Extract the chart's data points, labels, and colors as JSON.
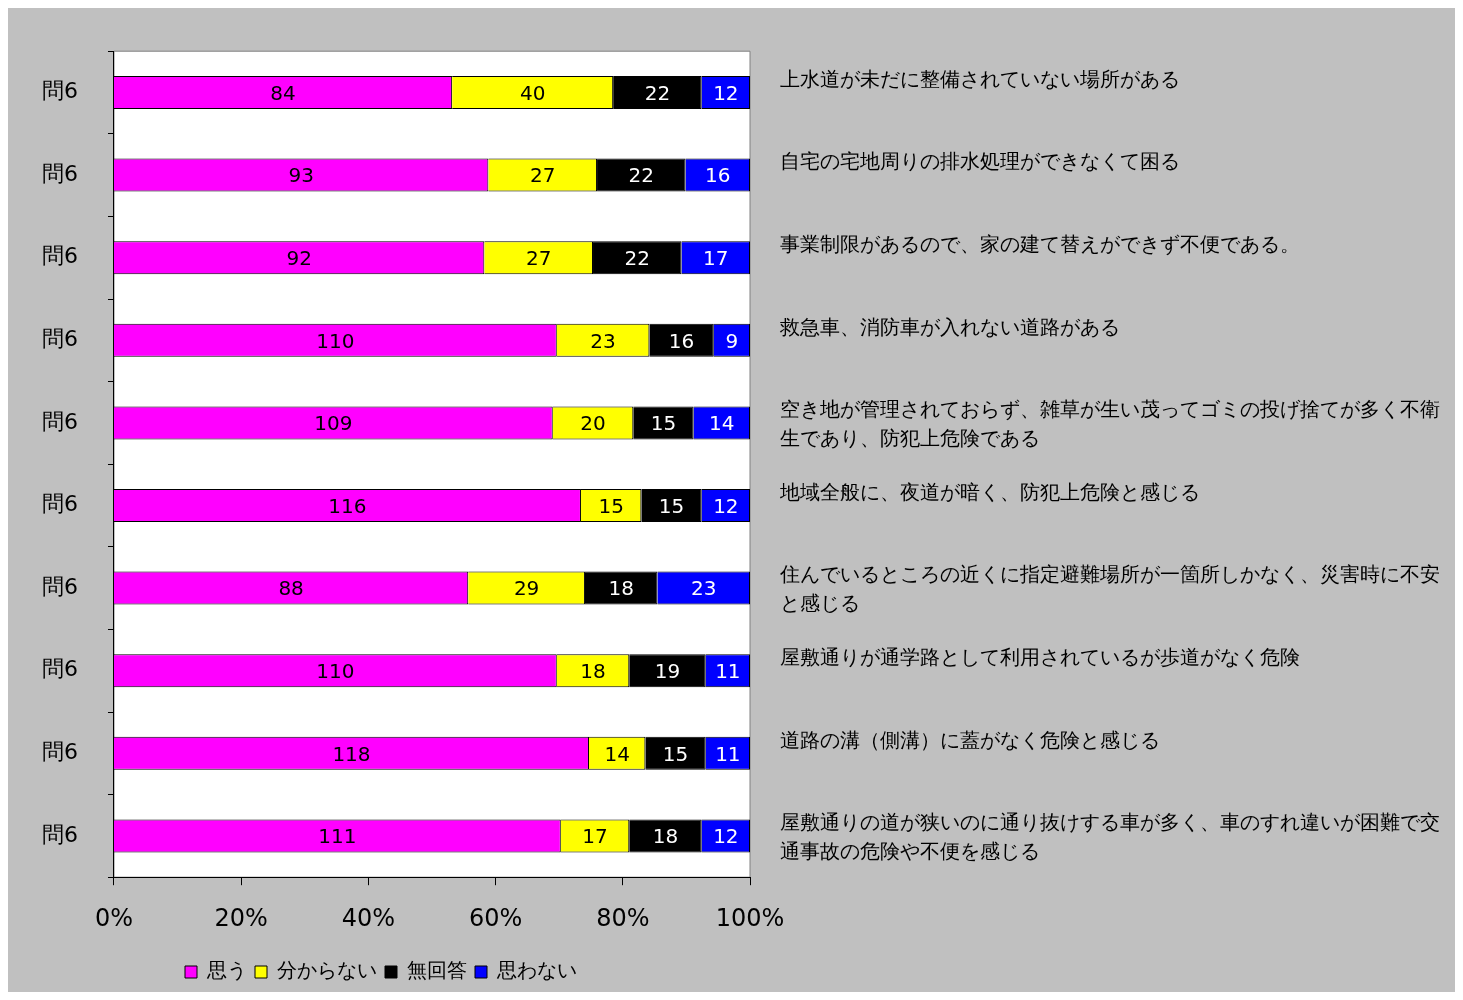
{
  "chart_data": {
    "type": "bar",
    "orientation": "horizontal",
    "stacked": true,
    "data_labels": true,
    "categories": [
      "問6",
      "問6",
      "問6",
      "問6",
      "問6",
      "問6",
      "問6",
      "問6",
      "問6",
      "問6"
    ],
    "series": [
      {
        "name": "思う",
        "color": "#ff00ff",
        "values": [
          84,
          93,
          92,
          110,
          109,
          116,
          88,
          110,
          118,
          111
        ]
      },
      {
        "name": "分からない",
        "color": "#ffff00",
        "values": [
          40,
          27,
          27,
          23,
          20,
          15,
          29,
          18,
          14,
          17
        ]
      },
      {
        "name": "無回答",
        "color": "#000000",
        "values": [
          22,
          22,
          22,
          16,
          15,
          15,
          18,
          19,
          15,
          18
        ]
      },
      {
        "name": "思わない",
        "color": "#0000ff",
        "values": [
          12,
          16,
          17,
          9,
          14,
          12,
          23,
          11,
          11,
          12
        ]
      }
    ],
    "xlim": [
      0,
      158
    ],
    "x2lim": [
      0,
      100
    ],
    "x2ticks": [
      {
        "value": 0,
        "label": "0%"
      },
      {
        "value": 20,
        "label": "20%"
      },
      {
        "value": 40,
        "label": "40%"
      },
      {
        "value": 60,
        "label": "60%"
      },
      {
        "value": 80,
        "label": "80%"
      },
      {
        "value": 100,
        "label": "100%"
      }
    ],
    "tick_labels": "y",
    "annotations": [
      "上水道が未だに整備されていない場所がある",
      "自宅の宅地周りの排水処理ができなくて困る",
      "事業制限があるので、家の建て替えができず不便である。",
      "救急車、消防車が入れない道路がある",
      "空き地が管理されておらず、雑草が生い茂ってゴミの投げ捨てが多く不衛生であり、防犯上危険である",
      "地域全般に、夜道が暗く、防犯上危険と感じる",
      "住んでいるところの近くに指定避難場所が一箇所しかなく、災害時に不安と感じる",
      "屋敷通りが通学路として利用されているが歩道がなく危険",
      "道路の溝（側溝）に蓋がなく危険と感じる",
      "屋敷通りの道が狭いのに通り抜けする車が多く、車のすれ違いが困難で交通事故の危険や不便を感じる"
    ],
    "grid": false,
    "legend": "bottom"
  }
}
